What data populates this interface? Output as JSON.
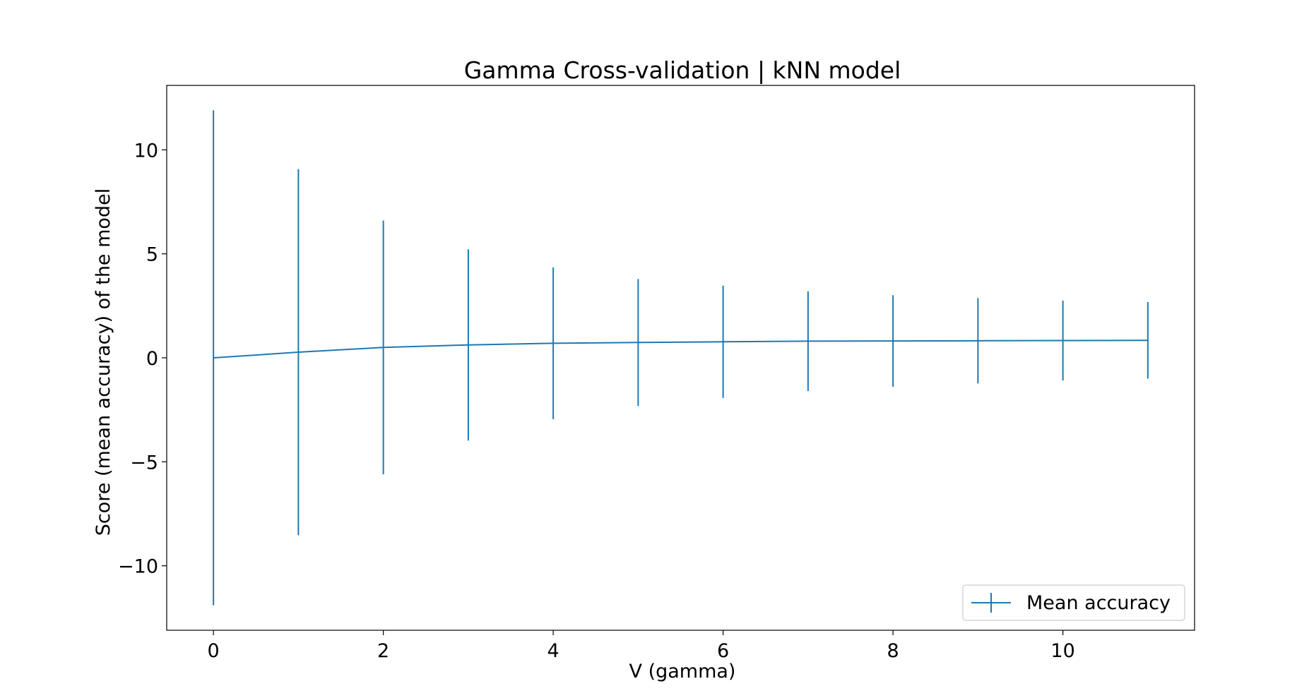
{
  "chart_data": {
    "type": "line",
    "title": "Gamma Cross-validation | kNN model",
    "xlabel": "V (gamma)",
    "ylabel": "Score (mean accuracy) of the model",
    "xlim": [
      -0.55,
      11.55
    ],
    "ylim": [
      -13.1,
      13.1
    ],
    "xticks": [
      0,
      2,
      4,
      6,
      8,
      10
    ],
    "xtick_labels": [
      "0",
      "2",
      "4",
      "6",
      "8",
      "10"
    ],
    "yticks": [
      -10,
      -5,
      0,
      5,
      10
    ],
    "ytick_labels": [
      "−10",
      "−5",
      "0",
      "5",
      "10"
    ],
    "grid": false,
    "legend_position": "lower-right",
    "series": [
      {
        "name": "Mean accuracy",
        "color": "#1f77b4",
        "x": [
          0,
          1,
          2,
          3,
          4,
          5,
          6,
          7,
          8,
          9,
          10,
          11
        ],
        "y": [
          0.0,
          0.27,
          0.5,
          0.62,
          0.7,
          0.74,
          0.77,
          0.8,
          0.81,
          0.82,
          0.83,
          0.84
        ],
        "yerr": [
          11.9,
          8.8,
          6.1,
          4.6,
          3.65,
          3.05,
          2.7,
          2.4,
          2.2,
          2.05,
          1.92,
          1.84
        ]
      }
    ]
  }
}
